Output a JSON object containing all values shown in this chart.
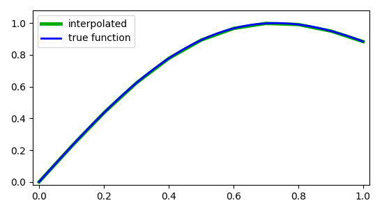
{
  "true_func": "x_sin_pi",
  "n_interp_points": 11,
  "x_range": [
    0.0,
    1.0
  ],
  "interp_color": "#00AA00",
  "true_color": "#0000FF",
  "interp_linewidth": 3.5,
  "true_linewidth": 2.0,
  "interp_label": "interpolated",
  "true_label": "true function",
  "xlim": [
    -0.02,
    1.02
  ],
  "ylim": [
    -0.02,
    1.08
  ],
  "legend_loc": "upper left",
  "figsize": [
    5.48,
    3.05
  ],
  "dpi": 100
}
